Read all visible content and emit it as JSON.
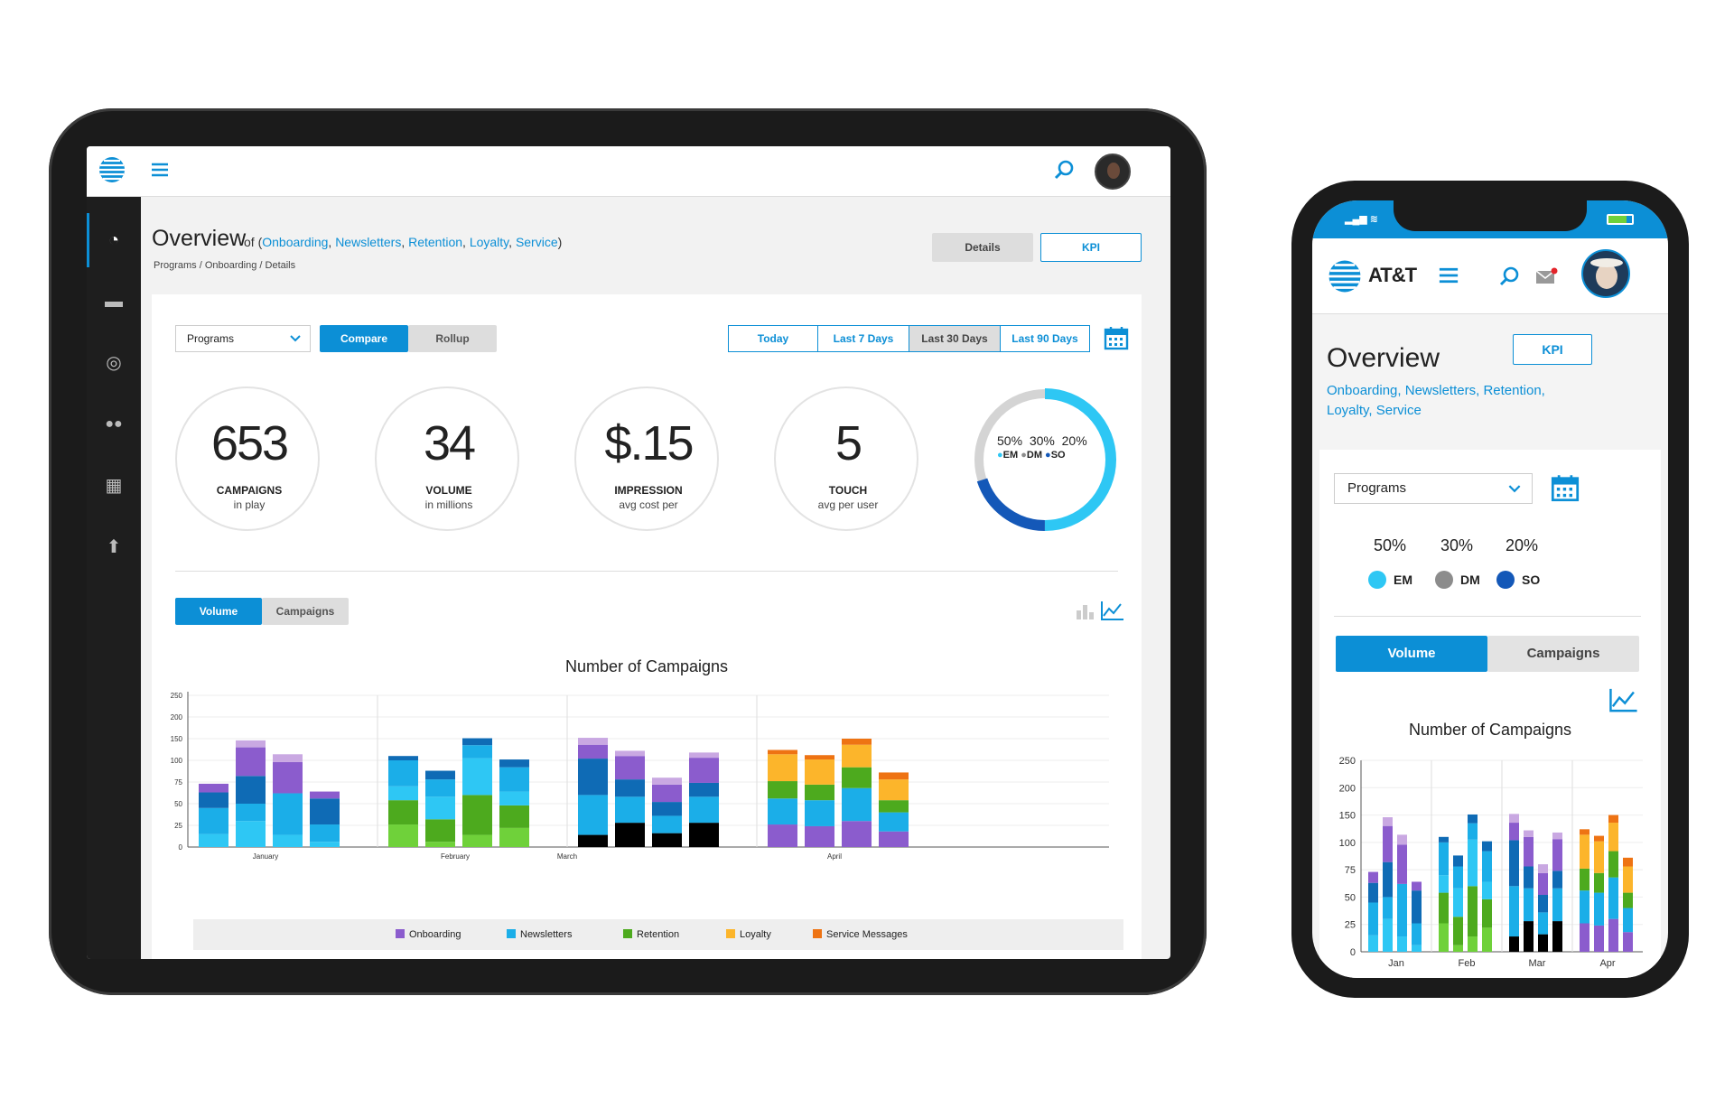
{
  "tablet": {
    "header": {
      "menu_icon": "hamburger-icon",
      "search_icon": "search-icon",
      "logo": "att-globe-icon"
    },
    "sidebar": {
      "items": [
        {
          "icon": "dashboard-icon"
        },
        {
          "icon": "folder-icon"
        },
        {
          "icon": "target-icon"
        },
        {
          "icon": "users-icon"
        },
        {
          "icon": "calendar-icon"
        },
        {
          "icon": "upload-icon"
        }
      ]
    },
    "title": "Overview",
    "title_of": "of (",
    "programs": [
      "Onboarding",
      "Newsletters",
      "Retention",
      "Loyalty",
      "Service"
    ],
    "title_close": ")",
    "breadcrumb": "Programs / Onboarding / Details",
    "details_label": "Details",
    "kpi_label": "KPI",
    "select_value": "Programs",
    "compare_label": "Compare",
    "rollup_label": "Rollup",
    "ranges": [
      "Today",
      "Last 7 Days",
      "Last 30 Days",
      "Last 90 Days"
    ],
    "kpis": [
      {
        "value": "653",
        "label": "CAMPAIGNS",
        "sub": "in play"
      },
      {
        "value": "34",
        "label": "VOLUME",
        "sub": "in millions"
      },
      {
        "value": "$.15",
        "label": "IMPRESSION",
        "sub": "avg cost per"
      },
      {
        "value": "5",
        "label": "TOUCH",
        "sub": "avg per user"
      }
    ],
    "donut": {
      "pcts": [
        "50%",
        "30%",
        "20%"
      ],
      "labels": [
        "EM",
        "DM",
        "SO"
      ],
      "values": [
        50,
        30,
        20
      ],
      "colors": [
        "#2ec7f4",
        "#8c8c8c",
        "#1458b8"
      ]
    },
    "tab_volume": "Volume",
    "tab_campaigns": "Campaigns",
    "chart_title": "Number of Campaigns",
    "legend": [
      {
        "name": "Onboarding",
        "color": "#8b5ccd"
      },
      {
        "name": "Newsletters",
        "color": "#1baee8"
      },
      {
        "name": "Retention",
        "color": "#4daa1e"
      },
      {
        "name": "Loyalty",
        "color": "#fcb52b"
      },
      {
        "name": "Service Messages",
        "color": "#ee7313"
      }
    ]
  },
  "phone": {
    "brand": "AT&T",
    "title": "Overview",
    "kpi_label": "KPI",
    "programs_line1": [
      "Onboarding",
      "Newsletters",
      "Retention"
    ],
    "programs_line2": [
      "Loyalty",
      "Service"
    ],
    "select_value": "Programs",
    "pcts": [
      "50%",
      "30%",
      "20%"
    ],
    "labels": [
      "EM",
      "DM",
      "SO"
    ],
    "colors": [
      "#2ec7f4",
      "#8c8c8c",
      "#1458b8"
    ],
    "tab_volume": "Volume",
    "tab_campaigns": "Campaigns",
    "chart_title": "Number of Campaigns"
  },
  "chart_data": [
    {
      "type": "bar",
      "title": "Number of Campaigns",
      "stacked": true,
      "yticks": [
        0,
        25,
        50,
        75,
        100,
        150,
        200,
        250
      ],
      "month_labels": [
        "January",
        "February",
        "March",
        "April"
      ],
      "groups": [
        {
          "month": "January",
          "bars": [
            [
              {
                "c": "#2ec7f4",
                "h": 15
              },
              {
                "c": "#1baee8",
                "h": 30
              },
              {
                "c": "#0f6bb5",
                "h": 18
              },
              {
                "c": "#8b5ccd",
                "h": 10
              }
            ],
            [
              {
                "c": "#2ec7f4",
                "h": 30
              },
              {
                "c": "#1baee8",
                "h": 20
              },
              {
                "c": "#0f6bb5",
                "h": 32
              },
              {
                "c": "#8b5ccd",
                "h": 48
              },
              {
                "c": "#c9a8e2",
                "h": 16
              }
            ],
            [
              {
                "c": "#2ec7f4",
                "h": 14
              },
              {
                "c": "#1baee8",
                "h": 48
              },
              {
                "c": "#0f6bb5",
                "h": 0
              },
              {
                "c": "#8b5ccd",
                "h": 36
              },
              {
                "c": "#c9a8e2",
                "h": 16
              }
            ],
            [
              {
                "c": "#2ec7f4",
                "h": 6
              },
              {
                "c": "#1baee8",
                "h": 20
              },
              {
                "c": "#0f6bb5",
                "h": 30
              },
              {
                "c": "#8b5ccd",
                "h": 8
              }
            ]
          ]
        },
        {
          "month": "February",
          "bars": [
            [
              {
                "c": "#6fd13a",
                "h": 26
              },
              {
                "c": "#4daa1e",
                "h": 28
              },
              {
                "c": "#2ec7f4",
                "h": 16
              },
              {
                "c": "#1baee8",
                "h": 30
              },
              {
                "c": "#0f6bb5",
                "h": 10
              }
            ],
            [
              {
                "c": "#6fd13a",
                "h": 6
              },
              {
                "c": "#4daa1e",
                "h": 26
              },
              {
                "c": "#2ec7f4",
                "h": 26
              },
              {
                "c": "#1baee8",
                "h": 20
              },
              {
                "c": "#0f6bb5",
                "h": 10
              }
            ],
            [
              {
                "c": "#6fd13a",
                "h": 14
              },
              {
                "c": "#4daa1e",
                "h": 46
              },
              {
                "c": "#2ec7f4",
                "h": 45
              },
              {
                "c": "#1baee8",
                "h": 30
              },
              {
                "c": "#0f6bb5",
                "h": 16
              }
            ],
            [
              {
                "c": "#6fd13a",
                "h": 22
              },
              {
                "c": "#4daa1e",
                "h": 26
              },
              {
                "c": "#2ec7f4",
                "h": 16
              },
              {
                "c": "#1baee8",
                "h": 28
              },
              {
                "c": "#0f6bb5",
                "h": 10
              }
            ]
          ]
        },
        {
          "month": "March",
          "bars": [
            [
              {
                "c": "#000000",
                "h": 14
              },
              {
                "c": "#1baee8",
                "h": 46
              },
              {
                "c": "#0f6bb5",
                "h": 44
              },
              {
                "c": "#8b5ccd",
                "h": 32
              },
              {
                "c": "#c9a8e2",
                "h": 16
              }
            ],
            [
              {
                "c": "#000000",
                "h": 28
              },
              {
                "c": "#1baee8",
                "h": 30
              },
              {
                "c": "#0f6bb5",
                "h": 20
              },
              {
                "c": "#8b5ccd",
                "h": 32
              },
              {
                "c": "#c9a8e2",
                "h": 12
              }
            ],
            [
              {
                "c": "#000000",
                "h": 16
              },
              {
                "c": "#1baee8",
                "h": 20
              },
              {
                "c": "#0f6bb5",
                "h": 16
              },
              {
                "c": "#8b5ccd",
                "h": 20
              },
              {
                "c": "#c9a8e2",
                "h": 8
              }
            ],
            [
              {
                "c": "#000000",
                "h": 28
              },
              {
                "c": "#1baee8",
                "h": 30
              },
              {
                "c": "#0f6bb5",
                "h": 16
              },
              {
                "c": "#8b5ccd",
                "h": 32
              },
              {
                "c": "#c9a8e2",
                "h": 12
              }
            ]
          ]
        },
        {
          "month": "April",
          "bars": [
            [
              {
                "c": "#8b5ccd",
                "h": 26
              },
              {
                "c": "#1baee8",
                "h": 30
              },
              {
                "c": "#4daa1e",
                "h": 20
              },
              {
                "c": "#fcb52b",
                "h": 38
              },
              {
                "c": "#ee7313",
                "h": 10
              }
            ],
            [
              {
                "c": "#8b5ccd",
                "h": 24
              },
              {
                "c": "#1baee8",
                "h": 30
              },
              {
                "c": "#4daa1e",
                "h": 18
              },
              {
                "c": "#fcb52b",
                "h": 30
              },
              {
                "c": "#ee7313",
                "h": 10
              }
            ],
            [
              {
                "c": "#8b5ccd",
                "h": 30
              },
              {
                "c": "#1baee8",
                "h": 38
              },
              {
                "c": "#4daa1e",
                "h": 24
              },
              {
                "c": "#fcb52b",
                "h": 44
              },
              {
                "c": "#ee7313",
                "h": 14
              }
            ],
            [
              {
                "c": "#8b5ccd",
                "h": 18
              },
              {
                "c": "#1baee8",
                "h": 22
              },
              {
                "c": "#4daa1e",
                "h": 14
              },
              {
                "c": "#fcb52b",
                "h": 24
              },
              {
                "c": "#ee7313",
                "h": 8
              }
            ]
          ]
        }
      ]
    },
    {
      "type": "bar",
      "title": "Number of Campaigns",
      "stacked": true,
      "yticks": [
        0,
        25,
        50,
        75,
        100,
        150,
        200,
        250
      ],
      "month_labels": [
        "Jan",
        "Feb",
        "Mar",
        "Apr"
      ]
    }
  ]
}
